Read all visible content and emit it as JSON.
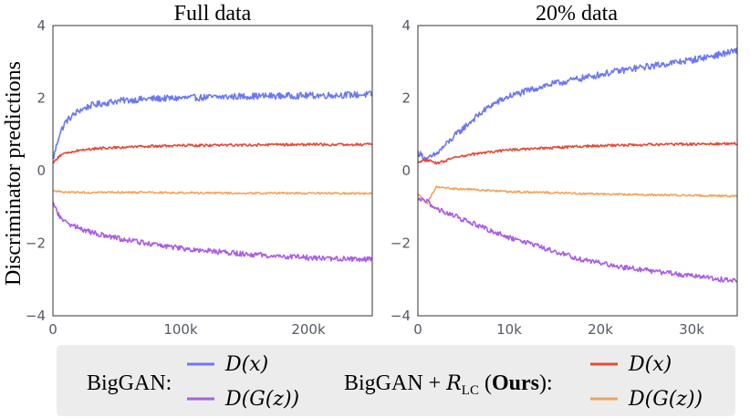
{
  "figure": {
    "ylabel": "Discriminator predictions"
  },
  "chart_data": [
    {
      "type": "line",
      "title": "Full data",
      "xlabel": "",
      "ylabel": "Discriminator predictions",
      "xlim": [
        0,
        250000
      ],
      "ylim": [
        -4,
        4
      ],
      "xticks": [
        0,
        100000,
        200000
      ],
      "xtick_labels": [
        "0",
        "100k",
        "200k"
      ],
      "yticks": [
        4,
        2,
        0,
        -2,
        -4
      ],
      "ytick_labels": [
        "4",
        "2",
        "0",
        "−2",
        "−4"
      ],
      "x": [
        0,
        5000,
        10000,
        20000,
        30000,
        50000,
        75000,
        100000,
        150000,
        200000,
        250000
      ],
      "series": [
        {
          "name": "BigGAN: D(x)",
          "color": "#6b78f2",
          "values": [
            0.3,
            1.0,
            1.35,
            1.65,
            1.8,
            1.92,
            1.98,
            2.0,
            2.05,
            2.07,
            2.1
          ]
        },
        {
          "name": "BigGAN + R_LC (Ours): D(x)",
          "color": "#e24b38",
          "values": [
            0.2,
            0.4,
            0.48,
            0.56,
            0.6,
            0.64,
            0.67,
            0.69,
            0.71,
            0.72,
            0.72
          ]
        },
        {
          "name": "BigGAN + R_LC (Ours): D(G(z))",
          "color": "#f4a259",
          "values": [
            -0.55,
            -0.58,
            -0.6,
            -0.6,
            -0.6,
            -0.6,
            -0.6,
            -0.61,
            -0.62,
            -0.62,
            -0.63
          ]
        },
        {
          "name": "BigGAN: D(G(z))",
          "color": "#a95de6",
          "values": [
            -0.9,
            -1.25,
            -1.42,
            -1.58,
            -1.7,
            -1.86,
            -2.02,
            -2.14,
            -2.3,
            -2.4,
            -2.45
          ]
        }
      ]
    },
    {
      "type": "line",
      "title": "20% data",
      "xlabel": "",
      "ylabel": "",
      "xlim": [
        0,
        35000
      ],
      "ylim": [
        -4,
        4
      ],
      "xticks": [
        0,
        10000,
        20000,
        30000
      ],
      "xtick_labels": [
        "0",
        "10k",
        "20k",
        "30k"
      ],
      "yticks": [
        4,
        2,
        0,
        -2,
        -4
      ],
      "ytick_labels": [
        "4",
        "2",
        "0",
        "−2",
        "−4"
      ],
      "x": [
        0,
        1000,
        2000,
        4000,
        6000,
        8000,
        10000,
        14000,
        18000,
        22000,
        26000,
        30000,
        35000
      ],
      "series": [
        {
          "name": "BigGAN: D(x)",
          "color": "#6b78f2",
          "values": [
            0.5,
            0.3,
            0.45,
            0.95,
            1.4,
            1.8,
            2.05,
            2.35,
            2.55,
            2.75,
            2.9,
            3.05,
            3.3
          ]
        },
        {
          "name": "BigGAN + R_LC (Ours): D(x)",
          "color": "#e24b38",
          "values": [
            0.25,
            0.3,
            0.2,
            0.35,
            0.45,
            0.52,
            0.57,
            0.62,
            0.67,
            0.7,
            0.72,
            0.73,
            0.75
          ]
        },
        {
          "name": "BigGAN + R_LC (Ours): D(G(z))",
          "color": "#f4a259",
          "values": [
            -0.65,
            -0.9,
            -0.45,
            -0.5,
            -0.52,
            -0.55,
            -0.58,
            -0.6,
            -0.63,
            -0.65,
            -0.67,
            -0.68,
            -0.7
          ]
        },
        {
          "name": "BigGAN: D(G(z))",
          "color": "#a95de6",
          "values": [
            -0.8,
            -0.85,
            -1.05,
            -1.25,
            -1.45,
            -1.65,
            -1.85,
            -2.15,
            -2.45,
            -2.65,
            -2.78,
            -2.9,
            -3.05
          ]
        }
      ]
    }
  ],
  "legend": {
    "group1_label": "BigGAN:",
    "group2_prefix": "BigGAN + ",
    "group2_math": "R",
    "group2_sub": "LC",
    "group2_open": " (",
    "group2_bold": "Ours",
    "group2_close": "):",
    "entries": [
      {
        "label": "D(x)",
        "color": "#6b78f2"
      },
      {
        "label": "D(G(z))",
        "color": "#a95de6"
      },
      {
        "label": "D(x)",
        "color": "#e24b38"
      },
      {
        "label": "D(G(z))",
        "color": "#f4a259"
      }
    ],
    "background": "#ececec"
  }
}
